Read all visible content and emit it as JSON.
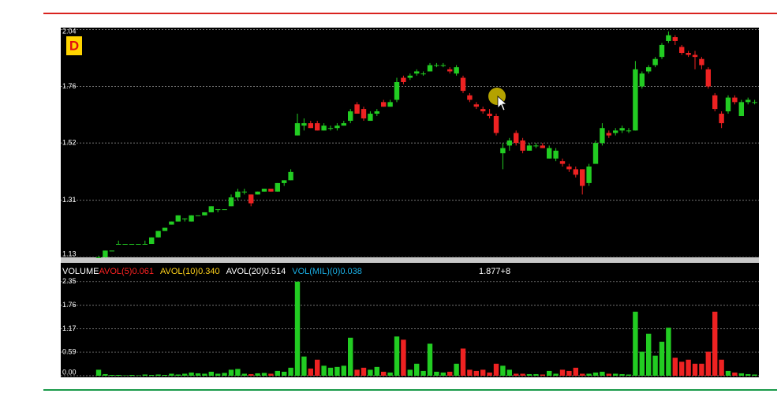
{
  "chart_data": [
    {
      "type": "candlestick",
      "badge": "D",
      "log": true,
      "grid": true,
      "up_color": "#22cc22",
      "down_color": "#ee2222",
      "ylim": [
        1.13,
        2.05
      ],
      "yticks": [
        1.13,
        1.31,
        1.52,
        1.76,
        2.04
      ],
      "open": [
        1.13,
        1.13,
        1.15,
        1.17,
        1.17,
        1.17,
        1.17,
        1.17,
        1.17,
        1.19,
        1.21,
        1.23,
        1.24,
        1.25,
        1.24,
        1.26,
        1.26,
        1.27,
        1.28,
        1.28,
        1.29,
        1.32,
        1.34,
        1.33,
        1.33,
        1.34,
        1.35,
        1.34,
        1.37,
        1.38,
        1.55,
        1.59,
        1.6,
        1.6,
        1.57,
        1.58,
        1.58,
        1.59,
        1.61,
        1.68,
        1.66,
        1.61,
        1.64,
        1.69,
        1.67,
        1.7,
        1.8,
        1.8,
        1.82,
        1.82,
        1.83,
        1.86,
        1.86,
        1.84,
        1.82,
        1.8,
        1.72,
        1.68,
        1.66,
        1.64,
        1.63,
        1.48,
        1.51,
        1.56,
        1.53,
        1.49,
        1.51,
        1.51,
        1.46,
        1.46,
        1.45,
        1.43,
        1.42,
        1.42,
        1.37,
        1.44,
        1.52,
        1.56,
        1.56,
        1.57,
        1.57,
        1.57,
        1.76,
        1.83,
        1.86,
        1.9,
        1.98,
        2.0,
        1.95,
        1.92,
        1.91,
        1.89,
        1.84,
        1.72,
        1.64,
        1.65,
        1.71,
        1.63,
        1.69,
        1.69
      ],
      "high": [
        1.135,
        1.15,
        1.15,
        1.18,
        1.17,
        1.17,
        1.17,
        1.18,
        1.19,
        1.21,
        1.22,
        1.24,
        1.26,
        1.25,
        1.26,
        1.26,
        1.27,
        1.29,
        1.28,
        1.28,
        1.33,
        1.35,
        1.35,
        1.33,
        1.34,
        1.35,
        1.35,
        1.37,
        1.38,
        1.42,
        1.64,
        1.62,
        1.61,
        1.61,
        1.6,
        1.59,
        1.6,
        1.61,
        1.66,
        1.69,
        1.67,
        1.65,
        1.66,
        1.7,
        1.7,
        1.8,
        1.81,
        1.82,
        1.84,
        1.83,
        1.87,
        1.87,
        1.87,
        1.85,
        1.86,
        1.81,
        1.73,
        1.69,
        1.67,
        1.66,
        1.64,
        1.52,
        1.54,
        1.57,
        1.54,
        1.52,
        1.52,
        1.52,
        1.51,
        1.5,
        1.46,
        1.44,
        1.43,
        1.42,
        1.44,
        1.53,
        1.6,
        1.57,
        1.58,
        1.59,
        1.58,
        1.88,
        1.83,
        1.86,
        1.9,
        1.97,
        2.03,
        2.01,
        1.96,
        1.93,
        1.93,
        1.9,
        1.85,
        1.73,
        1.65,
        1.72,
        1.72,
        1.7,
        1.71,
        1.7
      ],
      "low": [
        1.13,
        1.13,
        1.15,
        1.17,
        1.17,
        1.17,
        1.17,
        1.17,
        1.17,
        1.19,
        1.21,
        1.23,
        1.24,
        1.24,
        1.24,
        1.26,
        1.26,
        1.27,
        1.27,
        1.28,
        1.29,
        1.31,
        1.33,
        1.29,
        1.33,
        1.34,
        1.34,
        1.34,
        1.36,
        1.38,
        1.55,
        1.57,
        1.58,
        1.57,
        1.57,
        1.57,
        1.57,
        1.59,
        1.6,
        1.64,
        1.61,
        1.61,
        1.63,
        1.67,
        1.67,
        1.69,
        1.77,
        1.79,
        1.81,
        1.81,
        1.83,
        1.85,
        1.85,
        1.82,
        1.81,
        1.73,
        1.69,
        1.66,
        1.64,
        1.62,
        1.55,
        1.42,
        1.49,
        1.51,
        1.48,
        1.49,
        1.5,
        1.5,
        1.46,
        1.45,
        1.43,
        1.41,
        1.39,
        1.33,
        1.36,
        1.44,
        1.51,
        1.54,
        1.55,
        1.56,
        1.56,
        1.57,
        1.75,
        1.82,
        1.85,
        1.89,
        1.97,
        1.96,
        1.91,
        1.9,
        1.84,
        1.84,
        1.75,
        1.65,
        1.58,
        1.64,
        1.68,
        1.63,
        1.68,
        1.68
      ],
      "close": [
        1.13,
        1.15,
        1.15,
        1.17,
        1.17,
        1.17,
        1.17,
        1.17,
        1.19,
        1.21,
        1.22,
        1.24,
        1.26,
        1.25,
        1.26,
        1.26,
        1.27,
        1.29,
        1.28,
        1.28,
        1.32,
        1.34,
        1.34,
        1.3,
        1.34,
        1.35,
        1.34,
        1.37,
        1.38,
        1.41,
        1.6,
        1.6,
        1.58,
        1.57,
        1.59,
        1.58,
        1.59,
        1.6,
        1.65,
        1.64,
        1.62,
        1.64,
        1.65,
        1.67,
        1.69,
        1.78,
        1.78,
        1.81,
        1.83,
        1.82,
        1.86,
        1.86,
        1.86,
        1.83,
        1.85,
        1.74,
        1.7,
        1.67,
        1.65,
        1.63,
        1.56,
        1.5,
        1.53,
        1.52,
        1.49,
        1.51,
        1.51,
        1.5,
        1.5,
        1.49,
        1.44,
        1.42,
        1.4,
        1.36,
        1.43,
        1.52,
        1.58,
        1.55,
        1.57,
        1.58,
        1.57,
        1.84,
        1.82,
        1.85,
        1.89,
        1.96,
        2.01,
        1.98,
        1.92,
        1.91,
        1.9,
        1.86,
        1.76,
        1.66,
        1.6,
        1.71,
        1.69,
        1.69,
        1.7,
        1.69
      ]
    },
    {
      "type": "bar",
      "ylim": [
        0,
        2.78
      ],
      "grid": true,
      "yticks": [
        {
          "value": 0,
          "label": "0.00"
        },
        0.59,
        1.17,
        1.76,
        2.35
      ],
      "legend": [
        {
          "name": "VOLUME",
          "color": "#ffffff"
        },
        {
          "name": "AVOL(5)0.061",
          "color": "#ff2222"
        },
        {
          "name": "AVOL(10)0.340",
          "color": "#ffd21a"
        },
        {
          "name": "AVOL(20)0.514",
          "color": "#ffffff"
        },
        {
          "name": "VOL(MIL)(0)0.038",
          "color": "#1ab0e6"
        }
      ],
      "note": "1.877+8",
      "values": [
        0.15,
        0.04,
        0.02,
        0.02,
        0.01,
        0.02,
        0.01,
        0.03,
        0.02,
        0.03,
        0.02,
        0.05,
        0.03,
        0.05,
        0.08,
        0.06,
        0.05,
        0.1,
        0.05,
        0.07,
        0.15,
        0.17,
        0.05,
        0.04,
        0.06,
        0.07,
        0.05,
        0.12,
        0.1,
        0.2,
        2.35,
        0.48,
        0.18,
        0.4,
        0.25,
        0.2,
        0.22,
        0.25,
        0.95,
        0.15,
        0.2,
        0.15,
        0.22,
        0.1,
        0.08,
        0.98,
        0.9,
        0.15,
        0.3,
        0.12,
        0.8,
        0.1,
        0.08,
        0.1,
        0.3,
        0.68,
        0.15,
        0.12,
        0.15,
        0.08,
        0.3,
        0.25,
        0.15,
        0.05,
        0.05,
        0.04,
        0.04,
        0.03,
        0.12,
        0.05,
        0.15,
        0.12,
        0.2,
        0.05,
        0.05,
        0.08,
        0.1,
        0.05,
        0.05,
        0.04,
        0.03,
        1.6,
        0.6,
        1.05,
        0.5,
        0.85,
        1.2,
        0.45,
        0.35,
        0.4,
        0.3,
        0.3,
        0.6,
        1.6,
        0.4,
        0.12,
        0.08,
        0.06,
        0.04,
        0.03
      ]
    }
  ]
}
